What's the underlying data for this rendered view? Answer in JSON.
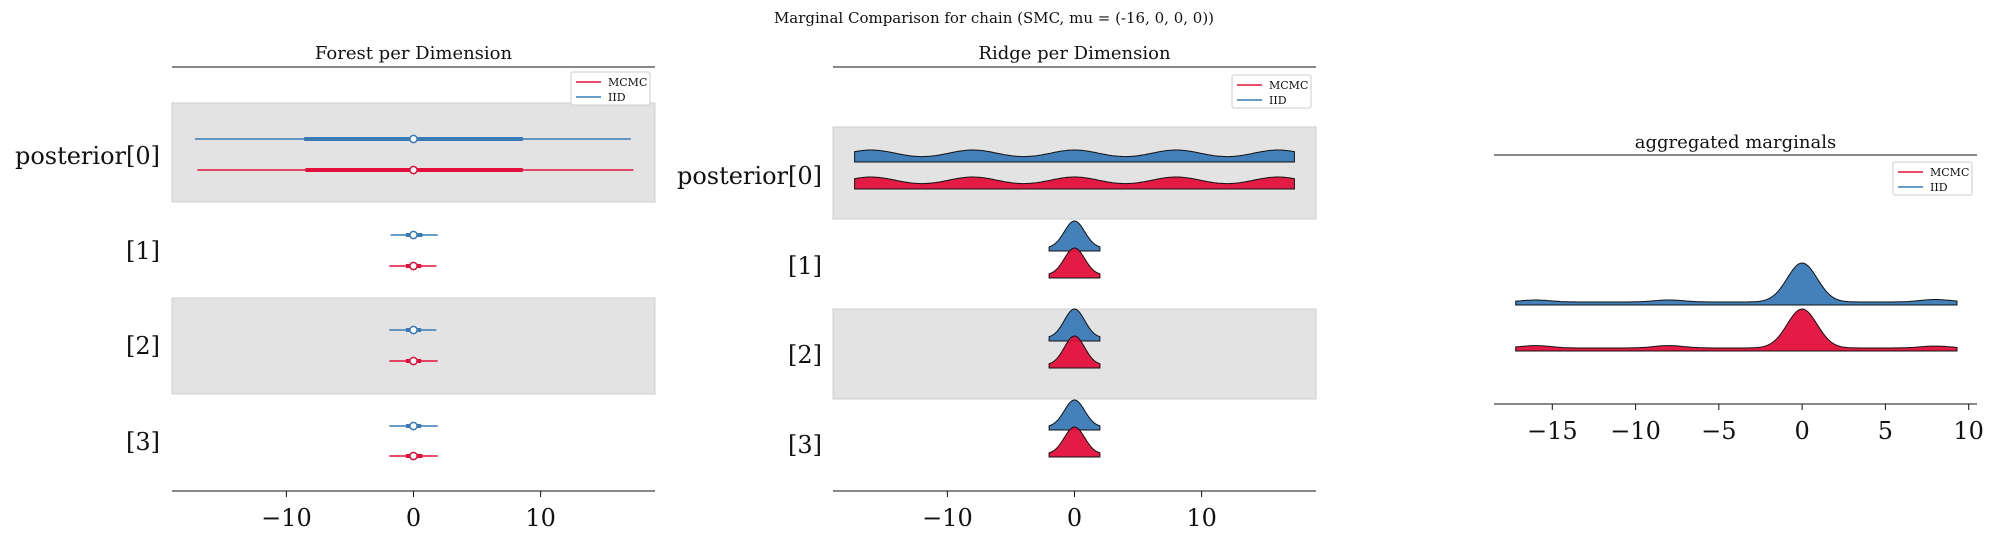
{
  "suptitle": "Marginal Comparison for chain (SMC, mu = (-16, 0, 0, 0))",
  "colors": {
    "MCMC": "#e3103b",
    "IID": "#3a7ab6",
    "band": "#e3e3e3"
  },
  "legend": [
    "MCMC",
    "IID"
  ],
  "chart_data": [
    {
      "type": "forest",
      "title": "Forest per Dimension",
      "xlim": [
        -19,
        19
      ],
      "xticks": [
        -10,
        0,
        10
      ],
      "row_labels": [
        "posterior[0]",
        "[1]",
        "[2]",
        "[3]"
      ],
      "legend": {
        "entries": [
          "MCMC",
          "IID"
        ],
        "placement": "top-right"
      },
      "series": [
        {
          "name": "IID",
          "rows": [
            {
              "median": 0,
              "hdi94": [
                -17.2,
                17.1
              ],
              "iqr": [
                -8.6,
                8.6
              ]
            },
            {
              "median": 0,
              "hdi94": [
                -1.8,
                1.9
              ],
              "iqr": [
                -0.6,
                0.7
              ]
            },
            {
              "median": 0,
              "hdi94": [
                -1.9,
                1.8
              ],
              "iqr": [
                -0.6,
                0.6
              ]
            },
            {
              "median": 0,
              "hdi94": [
                -1.9,
                1.9
              ],
              "iqr": [
                -0.6,
                0.6
              ]
            }
          ]
        },
        {
          "name": "MCMC",
          "rows": [
            {
              "median": 0,
              "hdi94": [
                -17.0,
                17.3
              ],
              "iqr": [
                -8.5,
                8.6
              ]
            },
            {
              "median": 0,
              "hdi94": [
                -1.9,
                1.8
              ],
              "iqr": [
                -0.6,
                0.6
              ]
            },
            {
              "median": 0,
              "hdi94": [
                -1.9,
                1.9
              ],
              "iqr": [
                -0.6,
                0.6
              ]
            },
            {
              "median": 0,
              "hdi94": [
                -1.9,
                1.9
              ],
              "iqr": [
                -0.6,
                0.7
              ]
            }
          ]
        }
      ]
    },
    {
      "type": "ridge",
      "title": "Ridge per Dimension",
      "xlim": [
        -19,
        19
      ],
      "xticks": [
        -10,
        0,
        10
      ],
      "row_labels": [
        "posterior[0]",
        "[1]",
        "[2]",
        "[3]"
      ],
      "legend": {
        "entries": [
          "MCMC",
          "IID"
        ],
        "placement": "top-right"
      },
      "series": [
        {
          "name": "IID",
          "rows": [
            {
              "range": [
                -17.3,
                17.3
              ],
              "mixture": [
                [
                  -16,
                  2,
                  1
                ],
                [
                  -8,
                  2,
                  1
                ],
                [
                  0,
                  2,
                  1
                ],
                [
                  8,
                  2,
                  1
                ],
                [
                  16,
                  2,
                  1
                ]
              ]
            },
            {
              "range": [
                -2,
                2
              ],
              "mixture": [
                [
                  0,
                  0.8,
                  1
                ]
              ]
            },
            {
              "range": [
                -2,
                2
              ],
              "mixture": [
                [
                  0,
                  0.8,
                  1
                ]
              ]
            },
            {
              "range": [
                -2,
                2
              ],
              "mixture": [
                [
                  0,
                  0.8,
                  1
                ]
              ]
            }
          ]
        },
        {
          "name": "MCMC",
          "rows": [
            {
              "range": [
                -17.3,
                17.3
              ],
              "mixture": [
                [
                  -16,
                  2,
                  1
                ],
                [
                  -8,
                  2,
                  1
                ],
                [
                  0,
                  2,
                  1
                ],
                [
                  8,
                  2,
                  1
                ],
                [
                  16,
                  2,
                  1
                ]
              ]
            },
            {
              "range": [
                -2,
                2
              ],
              "mixture": [
                [
                  0,
                  0.8,
                  1
                ]
              ]
            },
            {
              "range": [
                -2,
                2
              ],
              "mixture": [
                [
                  0,
                  0.8,
                  1
                ]
              ]
            },
            {
              "range": [
                -2,
                2
              ],
              "mixture": [
                [
                  0,
                  0.8,
                  1
                ]
              ]
            }
          ]
        }
      ]
    },
    {
      "type": "ridge",
      "title": "aggregated marginals",
      "xlim": [
        -18.5,
        10.5
      ],
      "xticks": [
        -15,
        -10,
        -5,
        0,
        5,
        10
      ],
      "legend": {
        "entries": [
          "MCMC",
          "IID"
        ],
        "placement": "top-right"
      },
      "series": [
        {
          "name": "IID",
          "range": [
            -17.2,
            9.3
          ],
          "mixture": [
            [
              -16,
              0.9,
              0.04
            ],
            [
              -8,
              0.9,
              0.04
            ],
            [
              0,
              0.9,
              0.78
            ],
            [
              8,
              0.9,
              0.05
            ]
          ]
        },
        {
          "name": "MCMC",
          "range": [
            -17.2,
            9.3
          ],
          "mixture": [
            [
              -16,
              0.9,
              0.05
            ],
            [
              -8,
              0.9,
              0.05
            ],
            [
              0,
              0.9,
              0.8
            ],
            [
              8,
              0.9,
              0.04
            ]
          ]
        }
      ]
    }
  ]
}
